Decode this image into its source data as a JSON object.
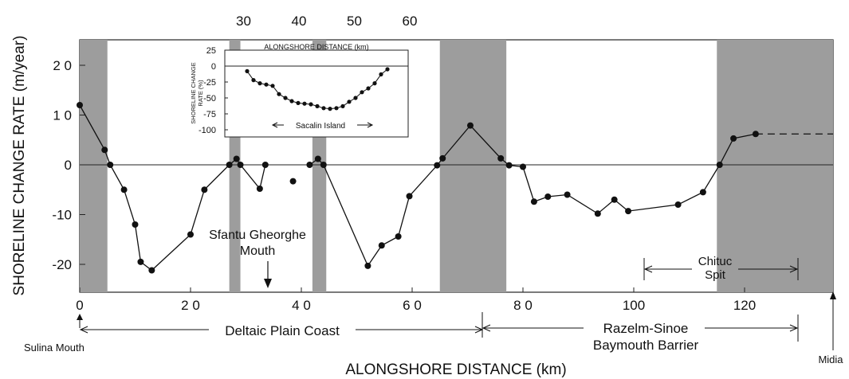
{
  "chart_data": [
    {
      "type": "line",
      "ylabel": "SHORELINE CHANGE RATE (m/year)",
      "xlabel": "ALONGSHORE DISTANCE (km)",
      "xlim": [
        0,
        136
      ],
      "ylim": [
        -25,
        26
      ],
      "y_ticks": [
        20,
        10,
        0,
        -10,
        -20
      ],
      "x_ticks": [
        0,
        20,
        40,
        60,
        80,
        100,
        120
      ],
      "x_tick_labels": [
        "0",
        "2 0",
        "4 0",
        "6 0",
        "8 0",
        "100",
        "120"
      ],
      "y_tick_labels": [
        "2 0",
        "1 0",
        "0",
        "-10",
        "-20"
      ],
      "top_x_ticks": [
        30,
        40,
        50,
        60
      ],
      "shaded_x_ranges": [
        [
          0,
          5
        ],
        [
          27,
          29
        ],
        [
          42,
          44.5
        ],
        [
          65,
          77
        ],
        [
          115,
          136
        ]
      ],
      "series": [
        {
          "name": "",
          "segment": "a",
          "points": [
            [
              0,
              12
            ],
            [
              4.5,
              3
            ],
            [
              5.5,
              0
            ],
            [
              8,
              -5
            ],
            [
              10,
              -12
            ],
            [
              11,
              -19.5
            ],
            [
              13,
              -21.2
            ],
            [
              20,
              -14
            ],
            [
              22.5,
              -5
            ],
            [
              27,
              0
            ],
            [
              28.3,
              1.2
            ],
            [
              29,
              0
            ],
            [
              32.5,
              -4.8
            ],
            [
              33.5,
              0
            ]
          ]
        },
        {
          "name": "",
          "segment": "b",
          "points": [
            [
              38.5,
              -3.3
            ]
          ]
        },
        {
          "name": "",
          "segment": "c",
          "points": [
            [
              41.5,
              0
            ],
            [
              43,
              1.2
            ],
            [
              44,
              0
            ],
            [
              52,
              -20.3
            ],
            [
              54.5,
              -16.2
            ],
            [
              57.5,
              -14.4
            ],
            [
              59.5,
              -6.3
            ],
            [
              64.5,
              -0.1
            ],
            [
              65.5,
              1.3
            ],
            [
              70.5,
              7.9
            ],
            [
              76,
              1.3
            ],
            [
              77.5,
              -0.1
            ],
            [
              80,
              -0.4
            ],
            [
              82,
              -7.4
            ],
            [
              84.5,
              -6.4
            ],
            [
              88,
              -6
            ],
            [
              93.5,
              -9.8
            ],
            [
              96.5,
              -7
            ],
            [
              99,
              -9.3
            ],
            [
              108,
              -8
            ],
            [
              112.5,
              -5.5
            ],
            [
              115.5,
              0
            ],
            [
              118,
              5.3
            ],
            [
              122,
              6.2
            ]
          ]
        }
      ],
      "dashed_extension": [
        [
          122,
          6.2
        ],
        [
          136,
          6.2
        ]
      ],
      "annotations": {
        "sulina": "Sulina Mouth",
        "midia": "Midia",
        "sfantu_line1": "Sfantu Gheorghe",
        "sfantu_line2": "Mouth",
        "deltaic": "Deltaic Plain Coast",
        "razelm_line1": "Razelm-Sinoe",
        "razelm_line2": "Baymouth Barrier",
        "chituc_line1": "Chituc",
        "chituc_line2": "Spit"
      }
    },
    {
      "type": "scatter",
      "title": "ALONGSHORE DISTANCE (km)",
      "ylabel_line1": "SHORELINE CHANGE",
      "ylabel_line2": "RATE (%)",
      "ylim": [
        -100,
        25
      ],
      "y_ticks": [
        25,
        0,
        -25,
        -50,
        -75,
        -100
      ],
      "annotation": "Sacalin Island",
      "points": [
        [
          0,
          -8
        ],
        [
          1,
          -22
        ],
        [
          2,
          -27
        ],
        [
          3,
          -29
        ],
        [
          4,
          -31
        ],
        [
          5,
          -44
        ],
        [
          6,
          -50
        ],
        [
          7,
          -55
        ],
        [
          8,
          -58
        ],
        [
          9,
          -59
        ],
        [
          10,
          -60
        ],
        [
          11,
          -63
        ],
        [
          12,
          -66
        ],
        [
          13,
          -67
        ],
        [
          14,
          -66
        ],
        [
          15,
          -63
        ],
        [
          16,
          -56
        ],
        [
          17,
          -50
        ],
        [
          18,
          -41
        ],
        [
          19,
          -35
        ],
        [
          20,
          -27
        ],
        [
          21,
          -13
        ],
        [
          22,
          -5
        ]
      ]
    }
  ]
}
